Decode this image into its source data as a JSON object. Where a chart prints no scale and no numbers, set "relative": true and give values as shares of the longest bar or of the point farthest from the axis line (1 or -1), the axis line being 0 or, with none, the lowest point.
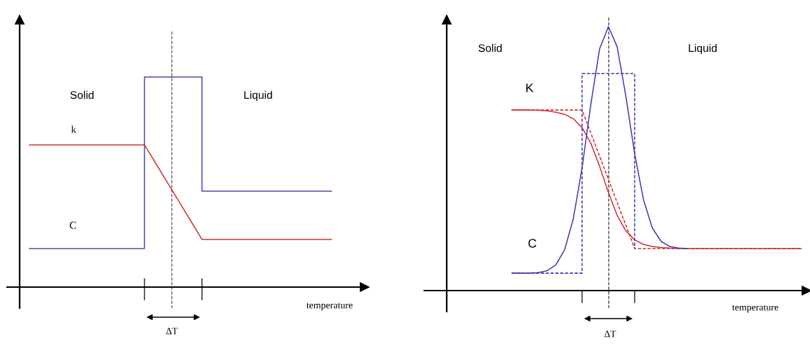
{
  "chart_data": [
    {
      "type": "line",
      "relative": true,
      "categories": [
        null,
        null,
        null,
        null,
        null,
        null,
        null,
        null,
        null,
        null,
        null,
        null,
        null,
        null,
        null,
        null,
        null,
        null,
        null,
        null,
        null,
        null
      ],
      "series": [
        {
          "name": "k",
          "color": "#d0312d",
          "line_style": "solid",
          "values": [
            0.677,
            0.677,
            0.677,
            0.677,
            0.677,
            0.677,
            0.677,
            0.677,
            0.677,
            0.565,
            0.452,
            0.34,
            0.227,
            0.227,
            0.227,
            0.227,
            0.227,
            0.227,
            0.227,
            0.227,
            0.227,
            0.227
          ]
        },
        {
          "name": "C",
          "type": "step",
          "color": "#4a4aa8",
          "line_style": "solid",
          "values": [
            0.183,
            0.183,
            0.183,
            0.183,
            0.183,
            0.183,
            0.183,
            0.183,
            1,
            1,
            1,
            1,
            0.457,
            0.457,
            0.457,
            0.457,
            0.457,
            0.457,
            0.457,
            0.457,
            0.457,
            0.457
          ]
        }
      ],
      "xlabel": "temperature",
      "annotations": [
        "Solid",
        "Liquid",
        "ΔT"
      ],
      "marker": "none"
    },
    {
      "type": "line",
      "relative": true,
      "categories": [
        null,
        null,
        null,
        null,
        null,
        null,
        null,
        null,
        null,
        null,
        null,
        null,
        null,
        null,
        null,
        null,
        null,
        null,
        null,
        null,
        null,
        null,
        null,
        null,
        null,
        null,
        null,
        null,
        null,
        null,
        null,
        null,
        null,
        null
      ],
      "series": [
        {
          "name": "C",
          "color": "#3c3cb0",
          "line_style": "solid",
          "values": [
            0.066,
            0.066,
            0.066,
            0.068,
            0.075,
            0.097,
            0.154,
            0.272,
            0.465,
            0.706,
            0.916,
            1,
            0.924,
            0.735,
            0.518,
            0.345,
            0.238,
            0.187,
            0.167,
            0.161,
            0.159,
            null,
            null,
            null,
            null,
            null,
            null,
            null,
            null,
            null,
            null,
            null,
            null,
            null
          ]
        },
        {
          "type": "step",
          "color": "#3c3cb0",
          "line_style": "dashed",
          "values": [
            0.066,
            0.066,
            0.066,
            0.066,
            0.066,
            0.066,
            0.066,
            0.066,
            0.822,
            0.822,
            0.822,
            0.822,
            0.822,
            0.822,
            0.159,
            null,
            null,
            null,
            null,
            null,
            null,
            null,
            null,
            null,
            null,
            null,
            null,
            null,
            null,
            null,
            null,
            null,
            null,
            null
          ]
        },
        {
          "name": "K",
          "color": "#d0312d",
          "line_style": "solid",
          "values": [
            0.684,
            0.684,
            0.684,
            0.683,
            0.681,
            0.676,
            0.668,
            0.651,
            0.617,
            0.558,
            0.471,
            0.372,
            0.285,
            0.226,
            0.192,
            0.175,
            0.167,
            0.163,
            0.161,
            0.16,
            0.159,
            0.159,
            0.159,
            0.159,
            0.159,
            0.159,
            0.159,
            0.159,
            0.159,
            0.159,
            0.159,
            0.159,
            0.159,
            0.159
          ]
        },
        {
          "color": "#d0312d",
          "line_style": "dashed",
          "values": [
            0.684,
            0.684,
            0.684,
            0.684,
            0.684,
            0.684,
            0.684,
            0.684,
            0.684,
            0.597,
            0.509,
            0.422,
            0.334,
            0.247,
            0.159,
            0.159,
            0.159,
            0.159,
            0.159,
            0.159,
            0.159,
            0.159,
            0.159,
            0.159,
            0.159,
            0.159,
            0.159,
            0.159,
            0.159,
            0.159,
            0.159,
            0.159,
            0.159,
            0.159
          ]
        }
      ],
      "xlabel": "temperature",
      "annotations": [
        "Solid",
        "Liquid",
        "ΔT"
      ],
      "marker": "none"
    }
  ]
}
